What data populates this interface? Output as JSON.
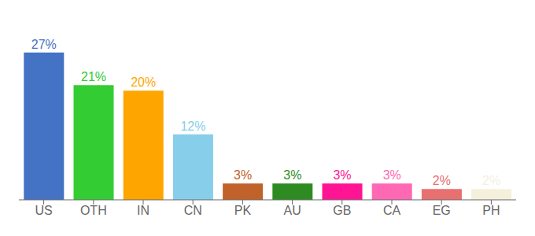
{
  "chart_data": {
    "type": "bar",
    "categories": [
      "US",
      "OTH",
      "IN",
      "CN",
      "PK",
      "AU",
      "GB",
      "CA",
      "EG",
      "PH"
    ],
    "values": [
      27,
      21,
      20,
      12,
      3,
      3,
      3,
      3,
      2,
      2
    ],
    "value_labels": [
      "27%",
      "21%",
      "20%",
      "12%",
      "3%",
      "3%",
      "3%",
      "3%",
      "2%",
      "2%"
    ],
    "colors": [
      "#4472C4",
      "#33CC33",
      "#FFA500",
      "#87CEEB",
      "#C0622A",
      "#2E8B22",
      "#FF1493",
      "#FF69B4",
      "#E87070",
      "#F5F0DC"
    ],
    "ylim": [
      0,
      32
    ],
    "grid": false,
    "data_labels": true,
    "tick_labels": "x"
  }
}
